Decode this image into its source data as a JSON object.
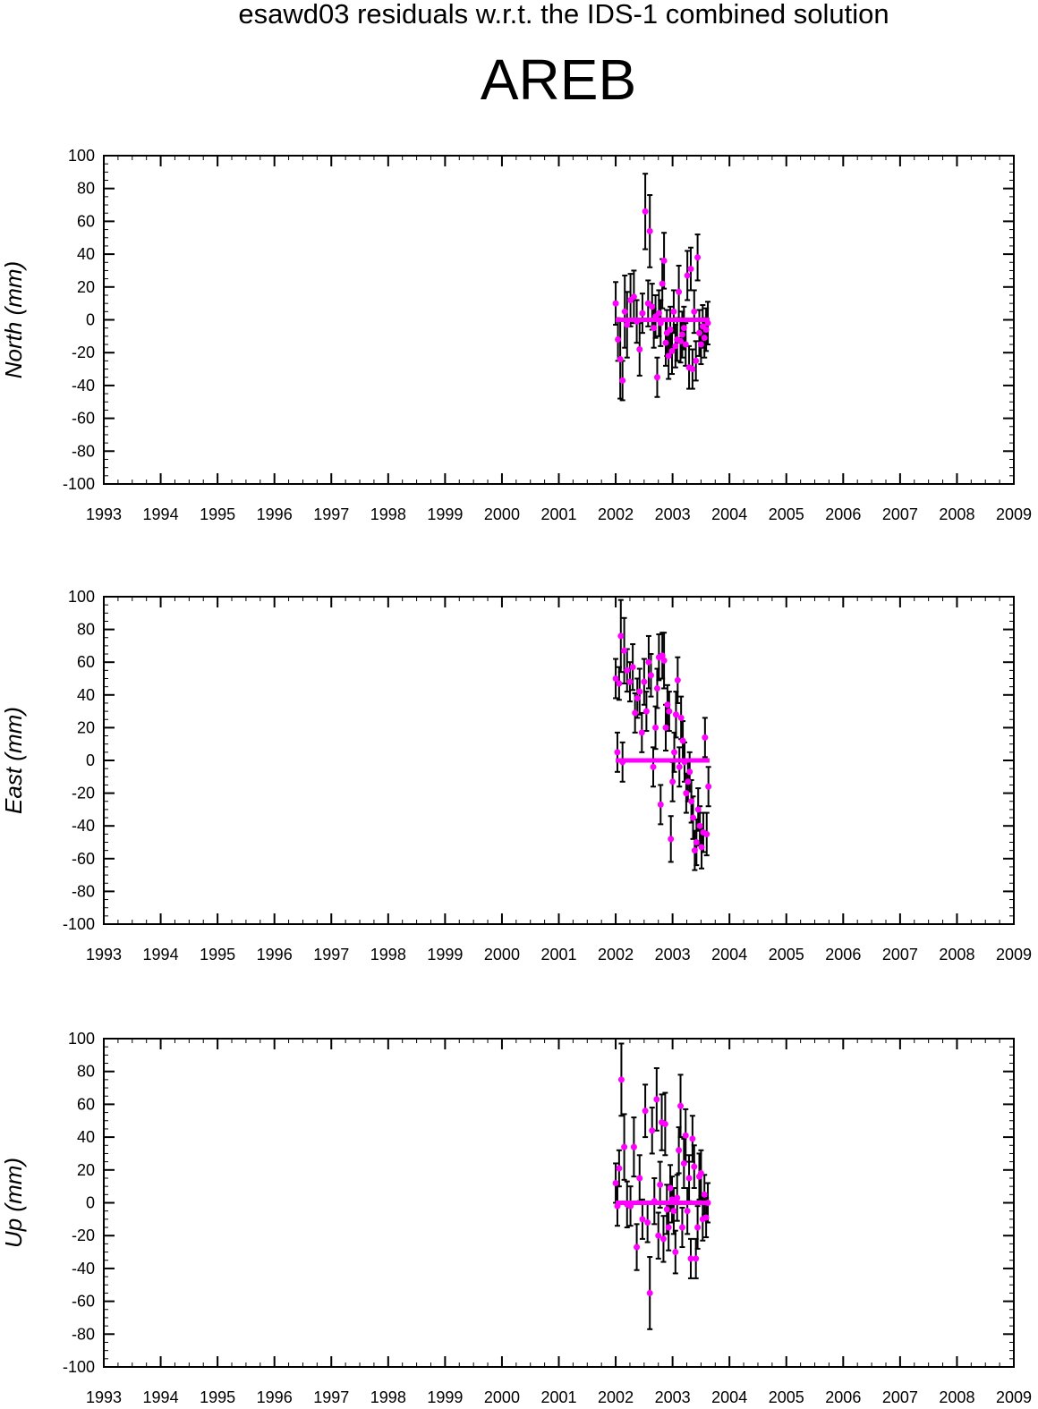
{
  "title": "esawd03 residuals w.r.t. the IDS-1 combined solution",
  "station": "AREB",
  "colors": {
    "marker": "#ff00ff",
    "errorbar": "#000000",
    "zero_line": "#ff00ff",
    "axes": "#000000"
  },
  "chart_data": [
    {
      "type": "scatter",
      "ylabel": "North (mm)",
      "xlim": [
        1993,
        2009
      ],
      "ylim": [
        -100,
        100
      ],
      "xticks": [
        "1993",
        "1994",
        "1995",
        "1996",
        "1997",
        "1998",
        "1999",
        "2000",
        "2001",
        "2002",
        "2003",
        "2004",
        "2005",
        "2006",
        "2007",
        "2008",
        "2009"
      ],
      "yticks": [
        "100",
        "80",
        "60",
        "40",
        "20",
        "0",
        "-20",
        "-40",
        "-60",
        "-80",
        "-100"
      ],
      "reference_line": {
        "x": [
          2002.0,
          2003.65
        ],
        "y": 0
      },
      "series": [
        {
          "x": [
            2002.0,
            2002.04,
            2002.08,
            2002.12,
            2002.16,
            2002.2,
            2002.26,
            2002.32,
            2002.37,
            2002.42,
            2002.47,
            2002.52,
            2002.57,
            2002.6,
            2002.64,
            2002.67,
            2002.7,
            2002.73,
            2002.76,
            2002.79,
            2002.82,
            2002.85,
            2002.88,
            2002.9,
            2002.93,
            2002.96,
            2002.99,
            2003.02,
            2003.05,
            2003.08,
            2003.11,
            2003.14,
            2003.17,
            2003.2,
            2003.23,
            2003.26,
            2003.29,
            2003.32,
            2003.35,
            2003.38,
            2003.41,
            2003.44,
            2003.47,
            2003.5,
            2003.53,
            2003.56,
            2003.59,
            2003.62
          ],
          "y": [
            10,
            -12,
            -24,
            -37,
            5,
            -3,
            12,
            14,
            -1,
            -18,
            4,
            66,
            10,
            54,
            8,
            -5,
            2,
            -35,
            4,
            -2,
            22,
            36,
            -14,
            -8,
            -22,
            -6,
            -19,
            5,
            -16,
            -12,
            17,
            -13,
            -9,
            -5,
            -15,
            27,
            -29,
            31,
            -30,
            5,
            -25,
            38,
            -8,
            -15,
            -4,
            -11,
            -6,
            -2
          ],
          "err": [
            13,
            13,
            24,
            12,
            22,
            20,
            16,
            16,
            13,
            16,
            12,
            23,
            14,
            22,
            14,
            12,
            13,
            12,
            14,
            14,
            15,
            17,
            14,
            14,
            14,
            14,
            14,
            13,
            13,
            13,
            16,
            13,
            14,
            13,
            13,
            15,
            13,
            13,
            12,
            13,
            12,
            14,
            14,
            12,
            13,
            12,
            13,
            13
          ]
        }
      ]
    },
    {
      "type": "scatter",
      "ylabel": "East (mm)",
      "xlim": [
        1993,
        2009
      ],
      "ylim": [
        -100,
        100
      ],
      "xticks": [
        "1993",
        "1994",
        "1995",
        "1996",
        "1997",
        "1998",
        "1999",
        "2000",
        "2001",
        "2002",
        "2003",
        "2004",
        "2005",
        "2006",
        "2007",
        "2008",
        "2009"
      ],
      "yticks": [
        "100",
        "80",
        "60",
        "40",
        "20",
        "0",
        "-20",
        "-40",
        "-60",
        "-80",
        "-100"
      ],
      "reference_line": {
        "x": [
          2002.0,
          2003.65
        ],
        "y": 0
      },
      "series": [
        {
          "x": [
            2002.0,
            2002.03,
            2002.06,
            2002.09,
            2002.12,
            2002.15,
            2002.2,
            2002.25,
            2002.3,
            2002.34,
            2002.38,
            2002.42,
            2002.46,
            2002.5,
            2002.54,
            2002.58,
            2002.62,
            2002.66,
            2002.7,
            2002.73,
            2002.76,
            2002.79,
            2002.82,
            2002.85,
            2002.88,
            2002.91,
            2002.94,
            2002.97,
            2003.0,
            2003.03,
            2003.06,
            2003.09,
            2003.12,
            2003.15,
            2003.18,
            2003.21,
            2003.24,
            2003.27,
            2003.3,
            2003.33,
            2003.36,
            2003.39,
            2003.42,
            2003.45,
            2003.48,
            2003.51,
            2003.54,
            2003.57,
            2003.6,
            2003.63
          ],
          "y": [
            50,
            5,
            47,
            76,
            -1,
            67,
            55,
            48,
            57,
            29,
            38,
            42,
            17,
            48,
            30,
            60,
            52,
            -4,
            20,
            44,
            63,
            -27,
            64,
            61,
            20,
            34,
            30,
            -48,
            -13,
            5,
            28,
            49,
            -4,
            26,
            12,
            -1,
            -20,
            -13,
            -7,
            -25,
            -35,
            -55,
            -50,
            -30,
            -40,
            -53,
            -44,
            14,
            -45,
            -16
          ],
          "err": [
            12,
            12,
            10,
            22,
            12,
            20,
            13,
            12,
            14,
            12,
            12,
            14,
            12,
            14,
            12,
            16,
            13,
            12,
            13,
            12,
            14,
            12,
            14,
            17,
            14,
            12,
            12,
            14,
            12,
            12,
            14,
            14,
            12,
            13,
            12,
            12,
            12,
            12,
            12,
            13,
            13,
            12,
            14,
            13,
            12,
            13,
            12,
            12,
            13,
            12
          ]
        }
      ]
    },
    {
      "type": "scatter",
      "ylabel": "Up (mm)",
      "xlim": [
        1993,
        2009
      ],
      "ylim": [
        -100,
        100
      ],
      "xticks": [
        "1993",
        "1994",
        "1995",
        "1996",
        "1997",
        "1998",
        "1999",
        "2000",
        "2001",
        "2002",
        "2003",
        "2004",
        "2005",
        "2006",
        "2007",
        "2008",
        "2009"
      ],
      "yticks": [
        "100",
        "80",
        "60",
        "40",
        "20",
        "0",
        "-20",
        "-40",
        "-60",
        "-80",
        "-100"
      ],
      "reference_line": {
        "x": [
          2002.0,
          2003.65
        ],
        "y": 0
      },
      "series": [
        {
          "x": [
            2002.0,
            2002.03,
            2002.06,
            2002.1,
            2002.15,
            2002.2,
            2002.26,
            2002.32,
            2002.37,
            2002.42,
            2002.47,
            2002.52,
            2002.56,
            2002.6,
            2002.64,
            2002.68,
            2002.72,
            2002.75,
            2002.78,
            2002.81,
            2002.84,
            2002.87,
            2002.9,
            2002.93,
            2002.96,
            2002.99,
            2003.02,
            2003.05,
            2003.08,
            2003.11,
            2003.14,
            2003.17,
            2003.2,
            2003.23,
            2003.26,
            2003.29,
            2003.32,
            2003.35,
            2003.38,
            2003.41,
            2003.44,
            2003.47,
            2003.5,
            2003.53,
            2003.56,
            2003.59,
            2003.62
          ],
          "y": [
            12,
            -2,
            21,
            75,
            34,
            -1,
            -2,
            34,
            -27,
            15,
            -10,
            56,
            -12,
            -55,
            44,
            1,
            63,
            -20,
            11,
            49,
            -22,
            48,
            -4,
            -15,
            9,
            2,
            -5,
            -30,
            3,
            32,
            59,
            -15,
            24,
            41,
            -5,
            15,
            -34,
            39,
            22,
            -34,
            -15,
            16,
            18,
            -10,
            5,
            -9,
            0
          ],
          "err": [
            12,
            12,
            11,
            22,
            20,
            14,
            12,
            18,
            14,
            14,
            12,
            16,
            12,
            22,
            14,
            14,
            19,
            14,
            14,
            17,
            14,
            19,
            15,
            14,
            14,
            14,
            14,
            13,
            14,
            14,
            19,
            12,
            15,
            16,
            14,
            14,
            12,
            14,
            13,
            12,
            13,
            14,
            14,
            13,
            12,
            12,
            12
          ]
        }
      ]
    }
  ]
}
